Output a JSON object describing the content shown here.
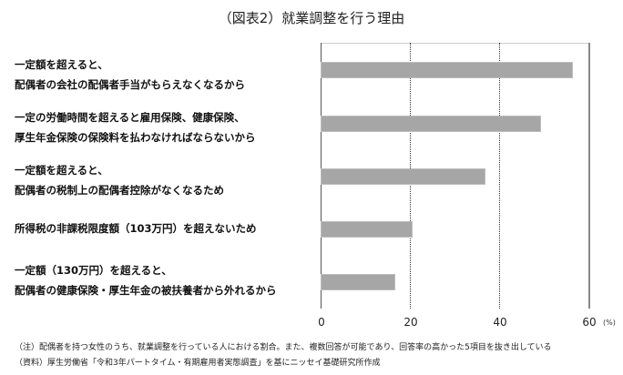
{
  "title": "（図表2）就業調整を行う理由",
  "categories": [
    [
      "一定額を超えると、",
      "配偶者の会社の配偶者手当がもらえなくなるから"
    ],
    [
      "一定の労働時間を超えると雇用保険、健康保険、",
      "厚生年金保険の保険料を払わなければならないから"
    ],
    [
      "一定額を超えると、",
      "配偶者の税制上の配偶者控除がなくなるため"
    ],
    [
      "所得税の非課税限度額（103万円）を超えないため"
    ],
    [
      "一定額（130万円）を超えると、",
      "配偶者の健康保険・厚生年金の被扶養者から外れるから"
    ]
  ],
  "axis": {
    "ticks": [
      "0",
      "20",
      "40",
      "60"
    ],
    "unit": "(%)"
  },
  "notes": {
    "note": "（注）配偶者を持つ女性のうち、就業調整を行っている人における割合。また、複数回答が可能であり、回答率の高かった5項目を抜き出している",
    "source": "（資料）厚生労働省「令和3年パートタイム・有期雇用者実態調査」を基にニッセイ基礎研究所作成"
  },
  "colors": {
    "bar": "#a6a6a6",
    "axis": "#555555"
  },
  "chart_data": {
    "type": "bar",
    "orientation": "horizontal",
    "title": "（図表2）就業調整を行う理由",
    "categories": [
      "一定額を超えると、配偶者の会社の配偶者手当がもらえなくなるから",
      "一定の労働時間を超えると雇用保険、健康保険、厚生年金保険の保険料を払わなければならないから",
      "一定額を超えると、配偶者の税制上の配偶者控除がなくなるため",
      "所得税の非課税限度額（103万円）を超えないため",
      "一定額（130万円）を超えると、配偶者の健康保険・厚生年金の被扶養者から外れるから"
    ],
    "values": [
      56.5,
      49.4,
      36.9,
      20.6,
      16.7
    ],
    "xlabel": "(%)",
    "ylabel": "",
    "xlim": [
      0,
      60
    ],
    "xticks": [
      0,
      20,
      40,
      60
    ],
    "grid": "vertical dotted at 20, 40",
    "legend": "none"
  }
}
